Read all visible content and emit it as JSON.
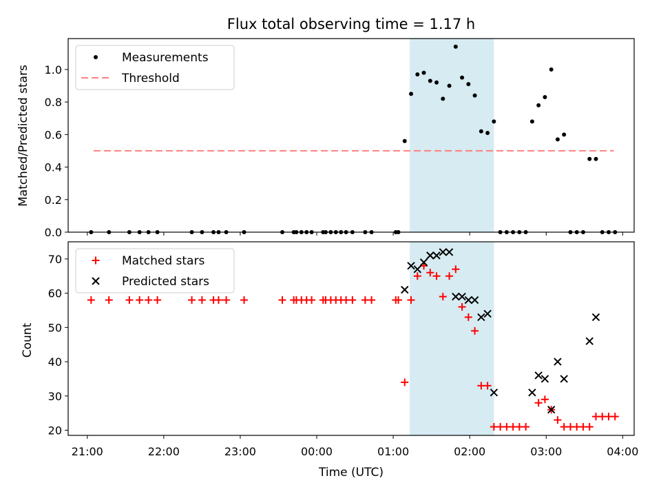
{
  "chart_data": [
    {
      "type": "scatter",
      "title": "Flux total observing time = 1.17 h",
      "ylabel": "Matched/Predicted stars",
      "xlabel": "",
      "xlim": [
        "20:45",
        "04:09"
      ],
      "ylim": [
        0,
        1.19
      ],
      "grid": false,
      "legend_position": "top-left",
      "shaded_span": {
        "x_start": "01:13",
        "x_end": "02:19",
        "color": "#add8e6"
      },
      "x_ticks": [
        "21:00",
        "22:00",
        "23:00",
        "00:00",
        "01:00",
        "02:00",
        "03:00",
        "04:00"
      ],
      "y_ticks": [
        "0.0",
        "0.2",
        "0.4",
        "0.6",
        "0.8",
        "1.0"
      ],
      "legend": [
        "Measurements",
        "Threshold"
      ],
      "series": [
        {
          "name": "Measurements",
          "marker": "dot",
          "color": "#000000",
          "points": [
            [
              "21:03",
              0
            ],
            [
              "21:17",
              0
            ],
            [
              "21:33",
              0
            ],
            [
              "21:41",
              0
            ],
            [
              "21:48",
              0
            ],
            [
              "21:55",
              0
            ],
            [
              "22:22",
              0
            ],
            [
              "22:30",
              0
            ],
            [
              "22:39",
              0
            ],
            [
              "22:43",
              0
            ],
            [
              "22:49",
              0
            ],
            [
              "23:03",
              0
            ],
            [
              "23:33",
              0
            ],
            [
              "23:42",
              0
            ],
            [
              "23:44",
              0
            ],
            [
              "23:48",
              0
            ],
            [
              "23:52",
              0
            ],
            [
              "23:56",
              0
            ],
            [
              "00:05",
              0
            ],
            [
              "00:07",
              0
            ],
            [
              "00:11",
              0
            ],
            [
              "00:15",
              0
            ],
            [
              "00:19",
              0
            ],
            [
              "00:23",
              0
            ],
            [
              "00:28",
              0
            ],
            [
              "00:38",
              0
            ],
            [
              "00:43",
              0
            ],
            [
              "01:02",
              0
            ],
            [
              "01:04",
              0
            ],
            [
              "01:09",
              0.56
            ],
            [
              "01:14",
              0.85
            ],
            [
              "01:19",
              0.97
            ],
            [
              "01:24",
              0.98
            ],
            [
              "01:29",
              0.93
            ],
            [
              "01:34",
              0.92
            ],
            [
              "01:39",
              0.82
            ],
            [
              "01:44",
              0.9
            ],
            [
              "01:49",
              1.14
            ],
            [
              "01:54",
              0.95
            ],
            [
              "01:59",
              0.91
            ],
            [
              "02:04",
              0.84
            ],
            [
              "02:09",
              0.62
            ],
            [
              "02:14",
              0.61
            ],
            [
              "02:19",
              0.68
            ],
            [
              "02:24",
              0
            ],
            [
              "02:29",
              0
            ],
            [
              "02:34",
              0
            ],
            [
              "02:39",
              0
            ],
            [
              "02:44",
              0
            ],
            [
              "02:49",
              0.68
            ],
            [
              "02:54",
              0.78
            ],
            [
              "02:59",
              0.83
            ],
            [
              "03:04",
              1.0
            ],
            [
              "03:09",
              0.57
            ],
            [
              "03:14",
              0.6
            ],
            [
              "03:19",
              0
            ],
            [
              "03:24",
              0
            ],
            [
              "03:29",
              0
            ],
            [
              "03:34",
              0.45
            ],
            [
              "03:39",
              0.45
            ],
            [
              "03:44",
              0
            ],
            [
              "03:49",
              0
            ],
            [
              "03:54",
              0
            ]
          ]
        },
        {
          "name": "Threshold",
          "marker": "dashed-line",
          "color": "#ff7f7f",
          "points": [
            [
              "21:05",
              0.5
            ],
            [
              "03:53",
              0.5
            ]
          ]
        }
      ]
    },
    {
      "type": "scatter",
      "title": "",
      "xlabel": "Time (UTC)",
      "ylabel": "Count",
      "xlim": [
        "20:45",
        "04:09"
      ],
      "ylim": [
        18.5,
        75
      ],
      "grid": false,
      "legend_position": "top-left",
      "shaded_span": {
        "x_start": "01:13",
        "x_end": "02:19",
        "color": "#add8e6"
      },
      "x_ticks": [
        "21:00",
        "22:00",
        "23:00",
        "00:00",
        "01:00",
        "02:00",
        "03:00",
        "04:00"
      ],
      "y_ticks": [
        "20",
        "30",
        "40",
        "50",
        "60",
        "70"
      ],
      "legend": [
        "Matched stars",
        "Predicted stars"
      ],
      "series": [
        {
          "name": "Matched stars",
          "marker": "plus",
          "color": "#ff0000",
          "points": [
            [
              "21:03",
              58
            ],
            [
              "21:17",
              58
            ],
            [
              "21:33",
              58
            ],
            [
              "21:41",
              58
            ],
            [
              "21:48",
              58
            ],
            [
              "21:55",
              58
            ],
            [
              "22:22",
              58
            ],
            [
              "22:30",
              58
            ],
            [
              "22:39",
              58
            ],
            [
              "22:43",
              58
            ],
            [
              "22:49",
              58
            ],
            [
              "23:03",
              58
            ],
            [
              "23:33",
              58
            ],
            [
              "23:42",
              58
            ],
            [
              "23:44",
              58
            ],
            [
              "23:48",
              58
            ],
            [
              "23:52",
              58
            ],
            [
              "23:56",
              58
            ],
            [
              "00:05",
              58
            ],
            [
              "00:07",
              58
            ],
            [
              "00:11",
              58
            ],
            [
              "00:15",
              58
            ],
            [
              "00:19",
              58
            ],
            [
              "00:23",
              58
            ],
            [
              "00:28",
              58
            ],
            [
              "00:38",
              58
            ],
            [
              "00:43",
              58
            ],
            [
              "01:02",
              58
            ],
            [
              "01:04",
              58
            ],
            [
              "01:09",
              34
            ],
            [
              "01:14",
              58
            ],
            [
              "01:19",
              65
            ],
            [
              "01:24",
              68
            ],
            [
              "01:29",
              66
            ],
            [
              "01:34",
              65
            ],
            [
              "01:39",
              59
            ],
            [
              "01:44",
              65
            ],
            [
              "01:49",
              67
            ],
            [
              "01:54",
              56
            ],
            [
              "01:59",
              53
            ],
            [
              "02:04",
              49
            ],
            [
              "02:09",
              33
            ],
            [
              "02:14",
              33
            ],
            [
              "02:19",
              21
            ],
            [
              "02:24",
              21
            ],
            [
              "02:29",
              21
            ],
            [
              "02:34",
              21
            ],
            [
              "02:39",
              21
            ],
            [
              "02:44",
              21
            ],
            [
              "02:54",
              28
            ],
            [
              "02:59",
              29
            ],
            [
              "03:04",
              26
            ],
            [
              "03:09",
              23
            ],
            [
              "03:14",
              21
            ],
            [
              "03:19",
              21
            ],
            [
              "03:24",
              21
            ],
            [
              "03:29",
              21
            ],
            [
              "03:34",
              21
            ],
            [
              "03:39",
              24
            ],
            [
              "03:44",
              24
            ],
            [
              "03:49",
              24
            ],
            [
              "03:54",
              24
            ]
          ]
        },
        {
          "name": "Predicted stars",
          "marker": "x",
          "color": "#000000",
          "points": [
            [
              "01:09",
              61
            ],
            [
              "01:14",
              68
            ],
            [
              "01:19",
              67
            ],
            [
              "01:24",
              69
            ],
            [
              "01:29",
              71
            ],
            [
              "01:34",
              71
            ],
            [
              "01:39",
              72
            ],
            [
              "01:44",
              72
            ],
            [
              "01:49",
              59
            ],
            [
              "01:54",
              59
            ],
            [
              "01:59",
              58
            ],
            [
              "02:04",
              58
            ],
            [
              "02:09",
              53
            ],
            [
              "02:14",
              54
            ],
            [
              "02:19",
              31
            ],
            [
              "02:49",
              31
            ],
            [
              "02:54",
              36
            ],
            [
              "02:59",
              35
            ],
            [
              "03:04",
              26
            ],
            [
              "03:09",
              40
            ],
            [
              "03:14",
              35
            ],
            [
              "03:34",
              46
            ],
            [
              "03:39",
              53
            ]
          ]
        }
      ]
    }
  ]
}
